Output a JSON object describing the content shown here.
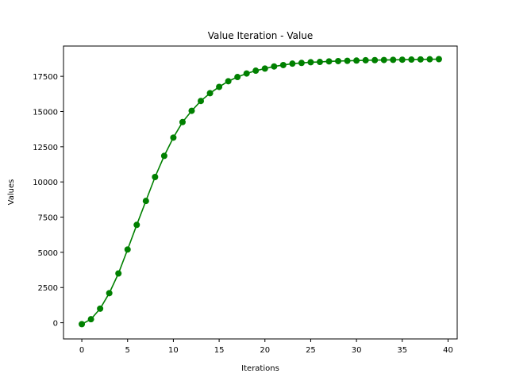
{
  "chart_data": {
    "type": "line",
    "title": "Value Iteration - Value",
    "xlabel": "Iterations",
    "ylabel": "Values",
    "xlim": [
      -2,
      41
    ],
    "ylim": [
      -1150,
      19650
    ],
    "xticks": [
      0,
      5,
      10,
      15,
      20,
      25,
      30,
      35,
      40
    ],
    "yticks": [
      0,
      2500,
      5000,
      7500,
      10000,
      12500,
      15000,
      17500
    ],
    "grid": false,
    "legend": "none",
    "series": [
      {
        "color": "#008000",
        "marker": "circle",
        "x": [
          0,
          1,
          2,
          3,
          4,
          5,
          6,
          7,
          8,
          9,
          10,
          11,
          12,
          13,
          14,
          15,
          16,
          17,
          18,
          19,
          20,
          21,
          22,
          23,
          24,
          25,
          26,
          27,
          28,
          29,
          30,
          31,
          32,
          33,
          34,
          35,
          36,
          37,
          38,
          39
        ],
        "y": [
          -100,
          250,
          1000,
          2100,
          3500,
          5200,
          6950,
          8650,
          10350,
          11850,
          13150,
          14250,
          15050,
          15750,
          16300,
          16750,
          17150,
          17450,
          17700,
          17900,
          18050,
          18200,
          18300,
          18400,
          18450,
          18500,
          18520,
          18560,
          18580,
          18600,
          18620,
          18640,
          18650,
          18660,
          18670,
          18680,
          18690,
          18700,
          18710,
          18720
        ]
      }
    ]
  }
}
